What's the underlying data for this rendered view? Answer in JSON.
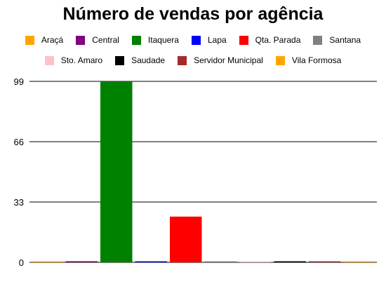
{
  "chart_data": {
    "type": "bar",
    "title": "Número de vendas por agência",
    "xlabel": "",
    "ylabel": "",
    "ylim": [
      0,
      99
    ],
    "yticks": [
      0,
      33,
      66,
      99
    ],
    "grid": true,
    "legend_position": "top",
    "series": [
      {
        "name": "Araçá",
        "value": 0.5,
        "color": "#FFA500"
      },
      {
        "name": "Central",
        "value": 0.6,
        "color": "#800080"
      },
      {
        "name": "Itaquera",
        "value": 99,
        "color": "#008000"
      },
      {
        "name": "Lapa",
        "value": 0.4,
        "color": "#0000FF"
      },
      {
        "name": "Qta. Parada",
        "value": 25,
        "color": "#FF0000"
      },
      {
        "name": "Santana",
        "value": 0.5,
        "color": "#808080"
      },
      {
        "name": "Sto. Amaro",
        "value": 0.4,
        "color": "#FFC0CB"
      },
      {
        "name": "Saudade",
        "value": 0.4,
        "color": "#000000"
      },
      {
        "name": "Servidor Municipal",
        "value": 0.5,
        "color": "#A52A2A"
      },
      {
        "name": "Vila Formosa",
        "value": 0.5,
        "color": "#FFA500"
      }
    ]
  }
}
